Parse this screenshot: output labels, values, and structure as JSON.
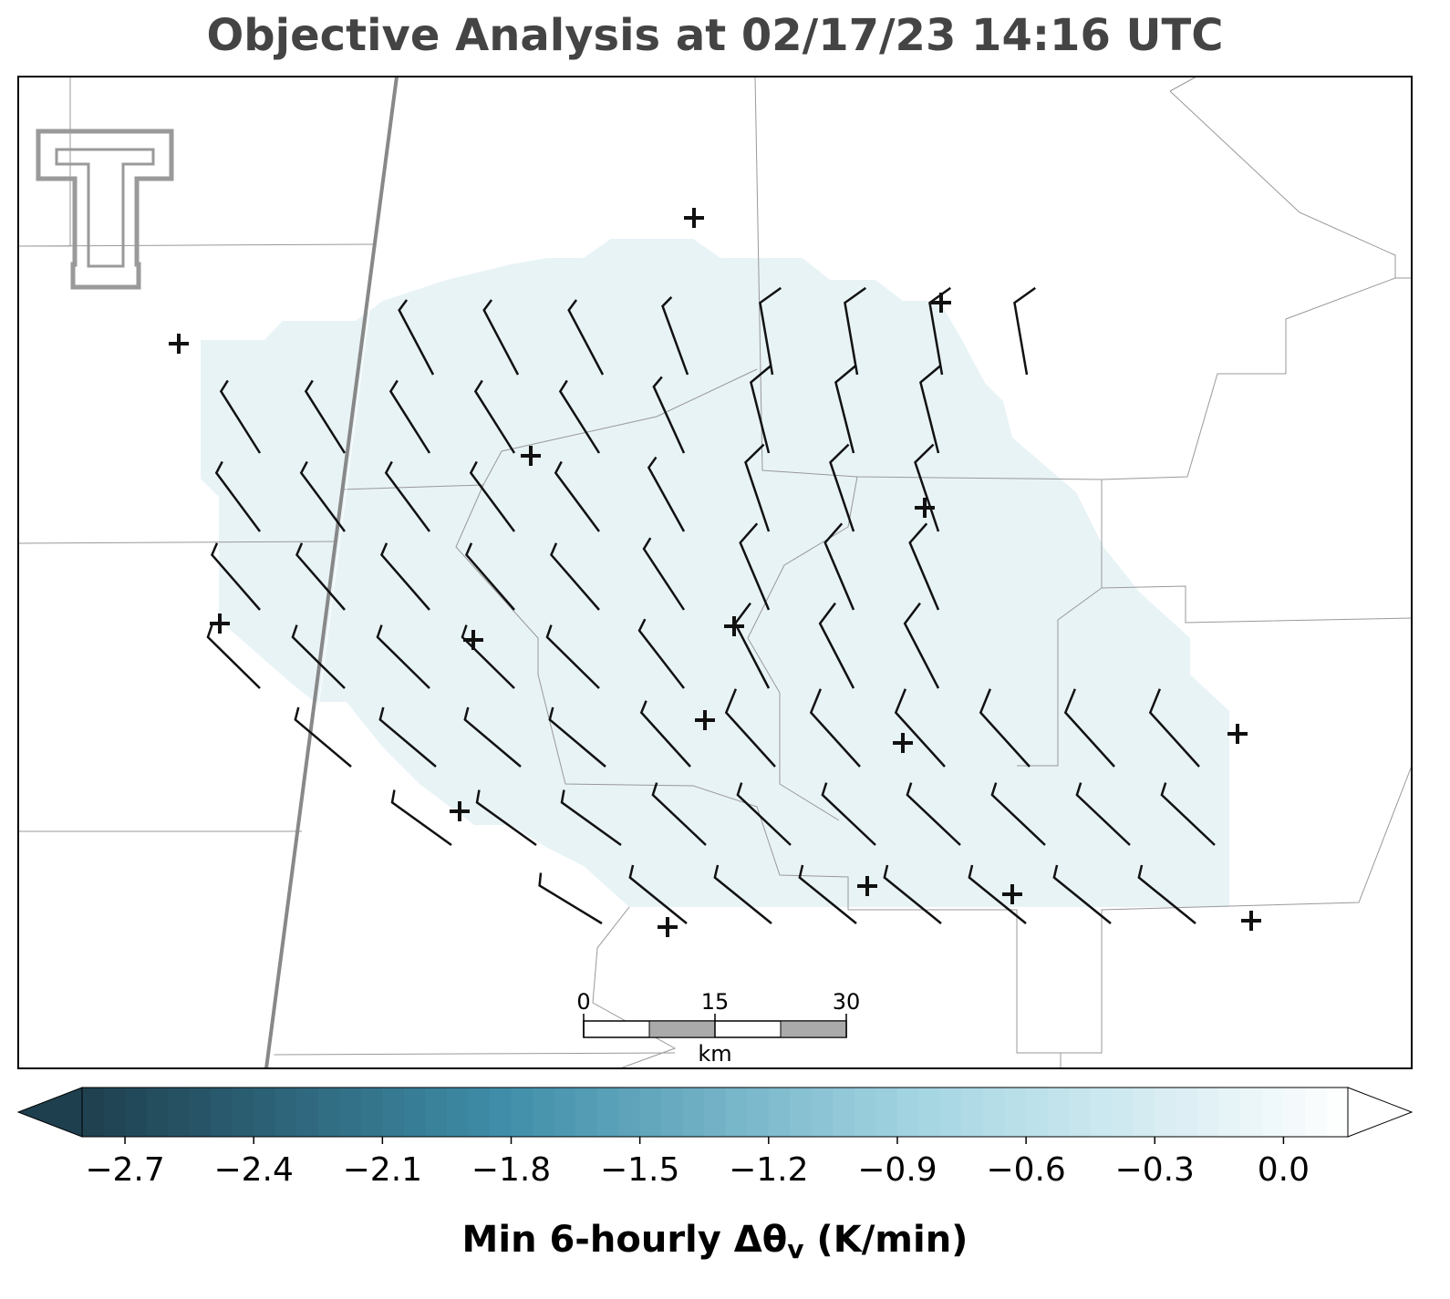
{
  "title": "Objective Analysis at 02/17/23 14:16 UTC",
  "scale_bar": {
    "ticks": [
      0,
      15,
      30
    ],
    "unit": "km"
  },
  "colorbar": {
    "clim": [
      -2.8,
      0.15
    ],
    "step": 0.05,
    "colormap": [
      "#1e3f4e",
      "#3f8ea9",
      "#a6d6e3",
      "#ffffff"
    ],
    "ticks": [
      {
        "value": -2.7,
        "label": "−2.7"
      },
      {
        "value": -2.4,
        "label": "−2.4"
      },
      {
        "value": -2.1,
        "label": "−2.1"
      },
      {
        "value": -1.8,
        "label": "−1.8"
      },
      {
        "value": -1.5,
        "label": "−1.5"
      },
      {
        "value": -1.2,
        "label": "−1.2"
      },
      {
        "value": -0.9,
        "label": "−0.9"
      },
      {
        "value": -0.6,
        "label": "−0.6"
      },
      {
        "value": -0.3,
        "label": "−0.3"
      },
      {
        "value": 0,
        "label": "0.0"
      }
    ],
    "label": "Min 6-hourly Δθ",
    "label_subscript": "v",
    "label_suffix": " (K/min)"
  }
}
